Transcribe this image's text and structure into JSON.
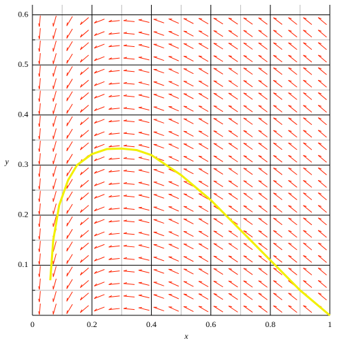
{
  "chart_data": {
    "type": "line",
    "xlabel": "x",
    "ylabel": "y",
    "x": [
      0.06,
      0.07,
      0.09,
      0.12,
      0.15,
      0.2,
      0.25,
      0.3,
      0.35,
      0.4,
      0.5,
      0.6,
      0.7,
      0.8,
      0.9,
      1.0
    ],
    "series": [
      {
        "color": "#f2f000",
        "values": [
          0.07,
          0.15,
          0.22,
          0.27,
          0.3,
          0.322,
          0.332,
          0.333,
          0.33,
          0.32,
          0.28,
          0.23,
          0.17,
          0.11,
          0.05,
          0.0
        ]
      }
    ],
    "xlim": [
      0,
      1
    ],
    "ylim": [
      0,
      0.62
    ],
    "xticks": [
      0,
      0.2,
      0.4,
      0.6,
      0.8,
      1
    ],
    "yticks": [
      0.1,
      0.2,
      0.3,
      0.4,
      0.5,
      0.6
    ],
    "grid": true,
    "field_color": "#ff2200"
  }
}
